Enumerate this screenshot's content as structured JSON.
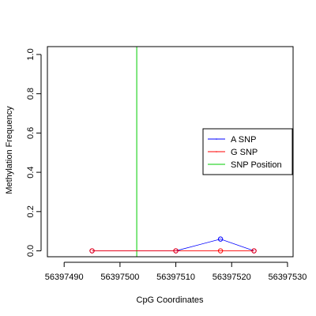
{
  "chart_data": {
    "type": "line",
    "xlabel": "CpG Coordinates",
    "ylabel": "Methylation Frequency",
    "xlim": [
      56397487,
      56397531
    ],
    "ylim": [
      -0.03,
      1.04
    ],
    "x_ticks": [
      56397490,
      56397500,
      56397510,
      56397520,
      56397530
    ],
    "x_tick_labels": [
      "56397490",
      "56397500",
      "56397510",
      "56397520",
      "56397530"
    ],
    "y_ticks": [
      0.0,
      0.2,
      0.4,
      0.6,
      0.8,
      1.0
    ],
    "y_tick_labels": [
      "0.0",
      "0.2",
      "0.4",
      "0.6",
      "0.8",
      "1.0"
    ],
    "grid": false,
    "legend_position": "right",
    "series": [
      {
        "name": "A SNP",
        "color": "#0000ff",
        "x": [
          56397495,
          56397510,
          56397518,
          56397524
        ],
        "y": [
          0.0,
          0.0,
          0.06,
          0.0
        ]
      },
      {
        "name": "G SNP",
        "color": "#ff0000",
        "x": [
          56397495,
          56397510,
          56397518,
          56397524
        ],
        "y": [
          0.0,
          0.0,
          0.0,
          0.0
        ]
      }
    ],
    "snp_position": {
      "name": "SNP Position",
      "color": "#00cc00",
      "x": 56397503
    },
    "legend": [
      {
        "label": "A SNP",
        "color": "#0000ff"
      },
      {
        "label": "G SNP",
        "color": "#ff0000"
      },
      {
        "label": "SNP Position",
        "color": "#00cc00"
      }
    ]
  }
}
